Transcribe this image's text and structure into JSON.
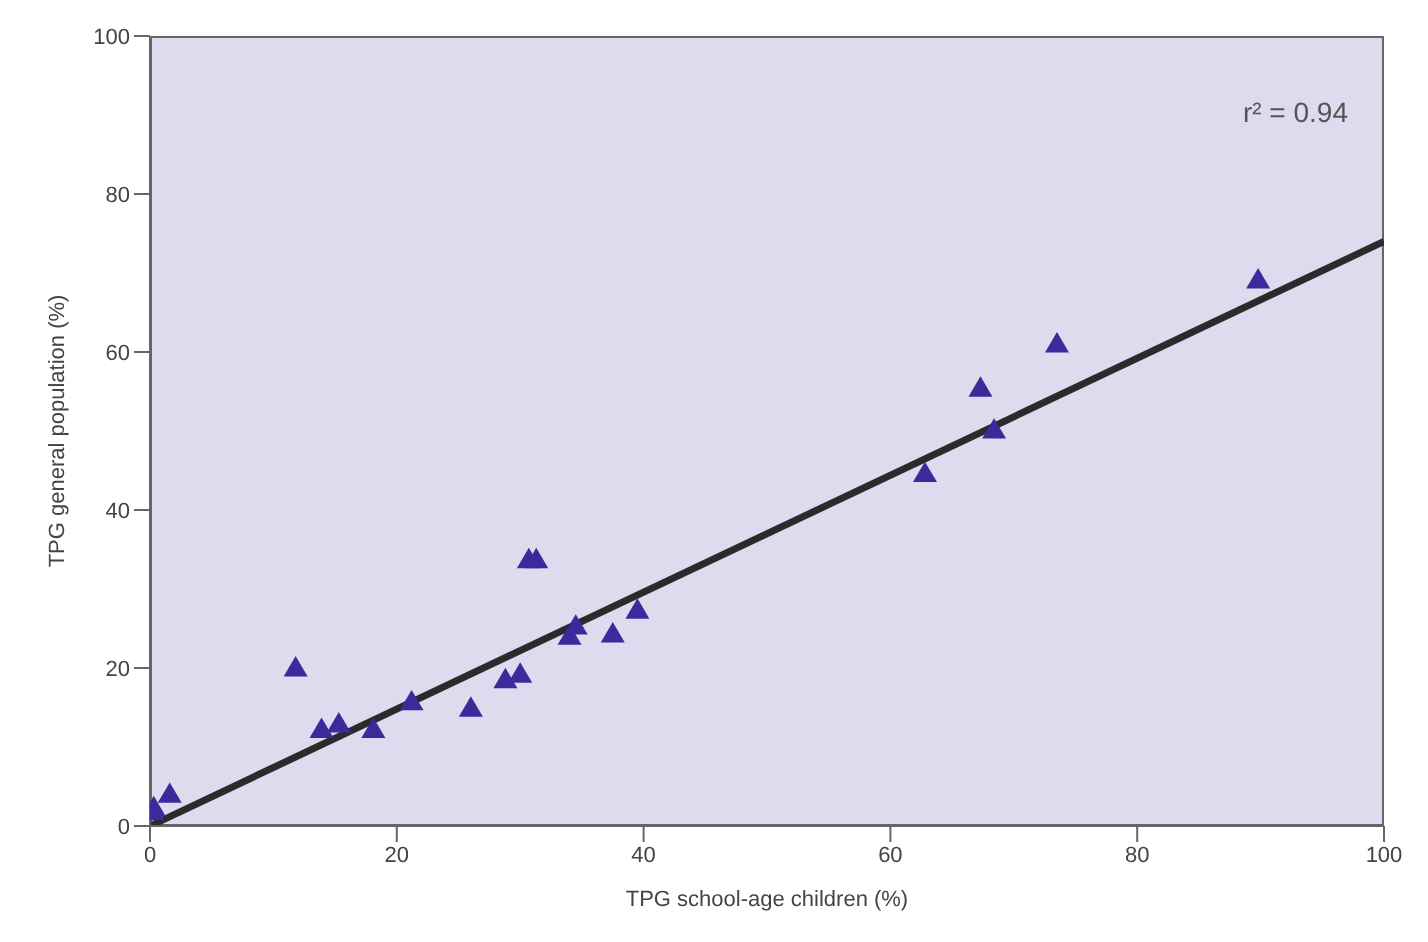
{
  "chart_data": {
    "type": "scatter",
    "xlabel": "TPG school-age children (%)",
    "ylabel": "TPG general population (%)",
    "annotations": [
      "r² = 0.94"
    ],
    "grid": false,
    "xlim": [
      0,
      100
    ],
    "ylim": [
      0,
      100
    ],
    "xticks": [
      0,
      20,
      40,
      60,
      80,
      100
    ],
    "yticks": [
      0,
      20,
      40,
      60,
      80,
      100
    ],
    "series": [
      {
        "marker": "triangle",
        "color": "#3b2a9c",
        "x": [
          0.2,
          0.3,
          1.6,
          11.8,
          13.9,
          15.3,
          18.1,
          21.2,
          26,
          28.8,
          30,
          30.7,
          31.3,
          34,
          34.5,
          37.5,
          39.5,
          62.8,
          67.3,
          68.4,
          73.5,
          89.8
        ],
        "values": [
          1.8,
          2.3,
          4.0,
          20,
          12.2,
          12.9,
          12.2,
          15.7,
          14.9,
          18.5,
          19.2,
          33.7,
          33.7,
          24,
          25.3,
          24.3,
          27.3,
          44.6,
          55.4,
          50.1,
          61,
          69.1
        ]
      },
      {
        "type": "line",
        "color": "#2b2b2b",
        "x": [
          0,
          100
        ],
        "values": [
          0,
          74
        ]
      }
    ]
  }
}
